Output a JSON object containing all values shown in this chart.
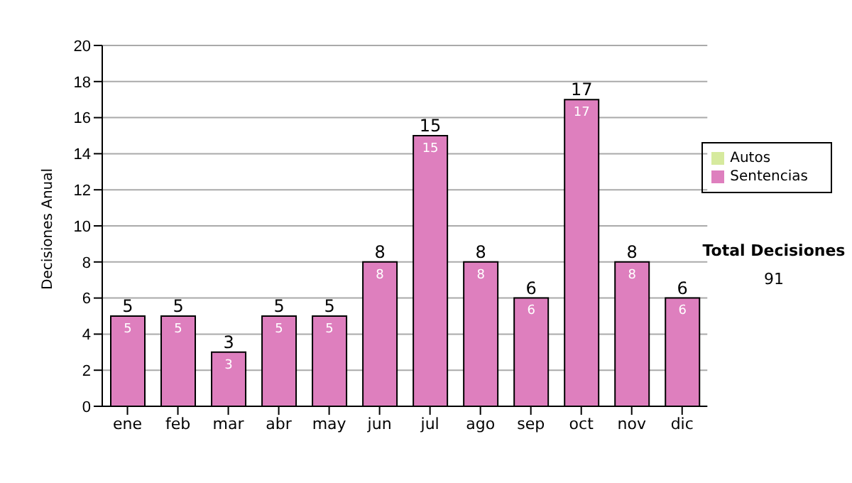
{
  "chart_data": {
    "type": "bar",
    "ylabel": "Decisiones Anual",
    "categories": [
      "ene",
      "feb",
      "mar",
      "abr",
      "may",
      "jun",
      "jul",
      "ago",
      "sep",
      "oct",
      "nov",
      "dic"
    ],
    "series": [
      {
        "name": "Sentencias",
        "color": "#de7fbe",
        "values": [
          5,
          5,
          3,
          5,
          5,
          8,
          15,
          8,
          6,
          17,
          8,
          6
        ]
      },
      {
        "name": "Autos",
        "color": "#d6ea9e",
        "values": [
          null,
          null,
          null,
          null,
          null,
          null,
          null,
          null,
          null,
          null,
          null,
          null
        ]
      }
    ],
    "stacked": true,
    "data_labels": true,
    "totals": [
      "5",
      "5",
      "3",
      "5",
      "5",
      "8",
      "15",
      "8",
      "6",
      "17",
      "8",
      "6"
    ],
    "ylim": [
      0,
      20
    ],
    "yticks": [
      0,
      2,
      4,
      6,
      8,
      10,
      12,
      14,
      16,
      18,
      20
    ],
    "grid": "y",
    "legend": "right",
    "annotations": [
      "Total Decisiones",
      "91"
    ]
  }
}
